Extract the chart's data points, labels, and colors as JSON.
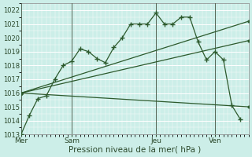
{
  "xlabel": "Pression niveau de la mer( hPa )",
  "bg_color": "#cceee8",
  "grid_color": "#ffffff",
  "line_color": "#2d5a2d",
  "ylim": [
    1013,
    1022.5
  ],
  "yticks": [
    1013,
    1014,
    1015,
    1016,
    1017,
    1018,
    1019,
    1020,
    1021,
    1022
  ],
  "day_labels": [
    "Mer",
    "Sam",
    "Jeu",
    "Ven"
  ],
  "day_positions": [
    0,
    6,
    16,
    23
  ],
  "xlim": [
    0,
    27
  ],
  "series_main": {
    "x": [
      0,
      1,
      2,
      3,
      4,
      5,
      6,
      7,
      8,
      9,
      10,
      11,
      12,
      13,
      14,
      15,
      16,
      17,
      18,
      19,
      20,
      21,
      22,
      23,
      24,
      25,
      26
    ],
    "y": [
      1013.0,
      1014.4,
      1015.6,
      1015.8,
      1017.0,
      1018.0,
      1018.3,
      1019.2,
      1019.0,
      1018.5,
      1018.2,
      1019.3,
      1020.0,
      1021.0,
      1021.0,
      1021.0,
      1021.8,
      1021.0,
      1021.0,
      1021.5,
      1021.5,
      1019.7,
      1018.4,
      1019.0,
      1018.4,
      1015.1,
      1014.1
    ]
  },
  "fan_lines": [
    {
      "x": [
        0,
        27
      ],
      "y": [
        1016.0,
        1021.2
      ]
    },
    {
      "x": [
        0,
        27
      ],
      "y": [
        1016.0,
        1019.8
      ]
    },
    {
      "x": [
        0,
        27
      ],
      "y": [
        1016.0,
        1015.0
      ]
    }
  ]
}
